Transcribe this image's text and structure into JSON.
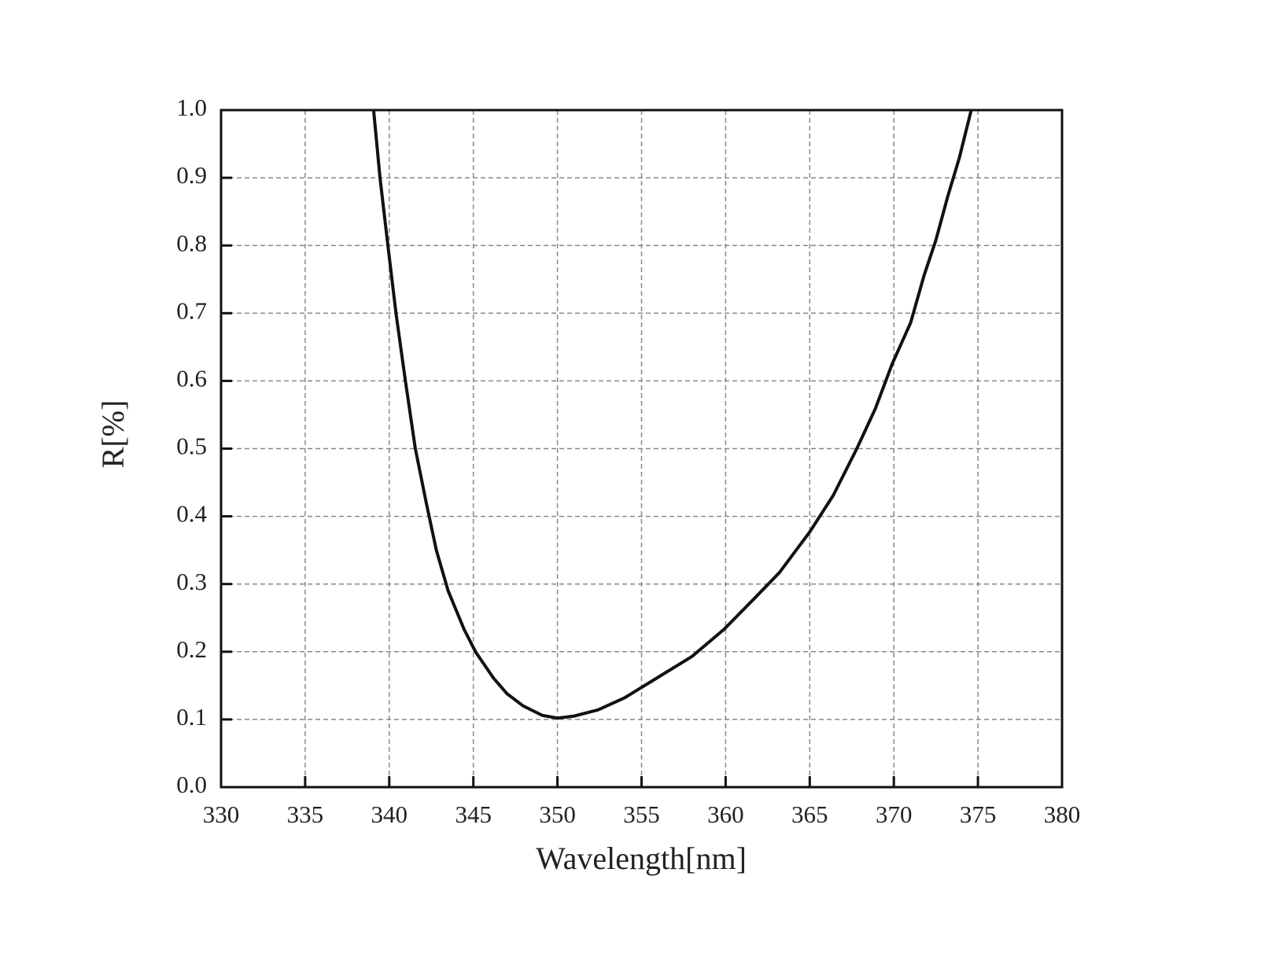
{
  "chart_data": {
    "type": "line",
    "xlabel": "Wavelength[nm]",
    "ylabel": "R[%]",
    "x": [
      339.07,
      339.45,
      339.92,
      340.4,
      340.96,
      341.55,
      342.2,
      342.8,
      343.5,
      344.45,
      345.15,
      346.2,
      347.0,
      347.96,
      349.1,
      350.0,
      351.0,
      352.4,
      354.0,
      355.9,
      358.0,
      359.9,
      361.76,
      363.2,
      365.0,
      366.4,
      367.8,
      368.9,
      369.9,
      371.0,
      371.8,
      372.5,
      373.2,
      373.9,
      374.6
    ],
    "series": [
      {
        "name": "R",
        "color": "#111111",
        "values": [
          1.0,
          0.9,
          0.8,
          0.7,
          0.6,
          0.5,
          0.42,
          0.35,
          0.29,
          0.233,
          0.199,
          0.161,
          0.138,
          0.12,
          0.106,
          0.102,
          0.105,
          0.114,
          0.132,
          0.161,
          0.193,
          0.233,
          0.28,
          0.317,
          0.377,
          0.431,
          0.5,
          0.559,
          0.625,
          0.686,
          0.756,
          0.808,
          0.872,
          0.93,
          1.0
        ]
      }
    ],
    "xlim": [
      330,
      380
    ],
    "xticks": [
      330,
      335,
      340,
      345,
      350,
      355,
      360,
      365,
      370,
      375,
      380
    ],
    "ylim": [
      0,
      1
    ],
    "yticks": [
      {
        "value": 0,
        "label": "0.0"
      },
      0.1,
      0.2,
      0.3,
      0.4,
      0.5,
      0.6,
      0.7,
      0.8,
      0.9,
      {
        "value": 1,
        "label": "1.0"
      }
    ],
    "grid": true
  }
}
